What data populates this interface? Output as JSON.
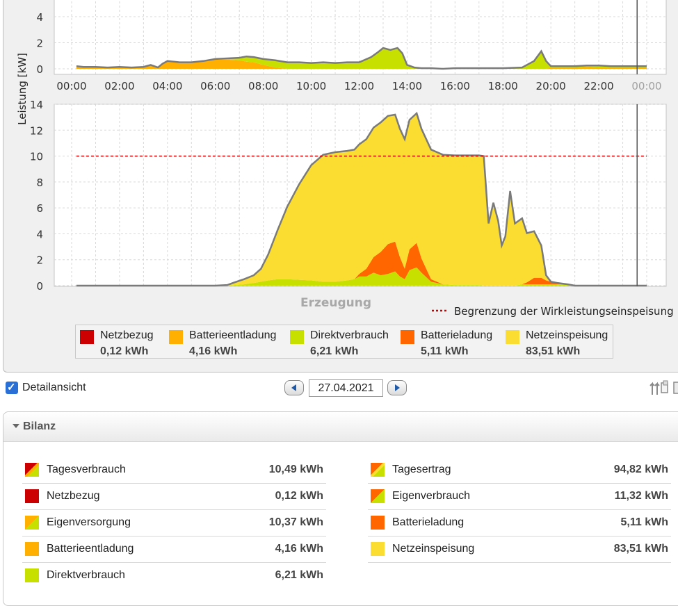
{
  "colors": {
    "netzbezug": "#cc0000",
    "batterieentladung": "#ffb000",
    "direktverbrauch": "#c8e000",
    "batterieladung": "#ff6600",
    "netzeinspeisung": "#fadd30",
    "limit_line": "#cc0000",
    "outline": "#7a7a7a"
  },
  "chart_data": [
    {
      "type": "area",
      "ylabel": "Leistung [kW]",
      "ylim": [
        0,
        4
      ],
      "yticks": [
        "0",
        "2",
        "4"
      ],
      "xticks": [
        "00:00",
        "02:00",
        "04:00",
        "06:00",
        "08:00",
        "10:00",
        "12:00",
        "14:00",
        "16:00",
        "18:00",
        "20:00",
        "22:00",
        "00:00"
      ],
      "xlim": [
        0,
        24
      ],
      "cursor_x": 23.6,
      "x": [
        0.2,
        0.5,
        1,
        1.5,
        2,
        2.5,
        3,
        3.3,
        3.6,
        3.8,
        4,
        4.5,
        5,
        5.5,
        6,
        6.5,
        7,
        7.3,
        7.6,
        8,
        8.5,
        9,
        9.5,
        10,
        10.5,
        11,
        11.5,
        12,
        12.5,
        12.8,
        13,
        13.3,
        13.6,
        13.8,
        14,
        14.3,
        14.6,
        15,
        15.5,
        16,
        17,
        18,
        18.8,
        19.3,
        19.6,
        19.8,
        20,
        21,
        21.5,
        22,
        22.5,
        23,
        23.6,
        24
      ],
      "series": [
        {
          "name": "Batterieentladung",
          "values": [
            0.2,
            0.15,
            0.15,
            0.1,
            0.15,
            0.1,
            0.15,
            0.3,
            0.1,
            0.4,
            0.6,
            0.5,
            0.5,
            0.55,
            0.7,
            0.7,
            0.65,
            0.55,
            0.5,
            0.3,
            0.1,
            0.0,
            0,
            0,
            0,
            0,
            0,
            0,
            0,
            0,
            0,
            0,
            0,
            0,
            0,
            0,
            0,
            0,
            0,
            0,
            0,
            0,
            0,
            0,
            0,
            0,
            0.1,
            0.1,
            0.15,
            0.1,
            0.1,
            0.1,
            0.1,
            0.1
          ]
        },
        {
          "name": "Direktverbrauch",
          "values": [
            0,
            0,
            0,
            0,
            0,
            0,
            0,
            0,
            0,
            0,
            0,
            0,
            0,
            0.05,
            0.05,
            0.1,
            0.2,
            0.4,
            0.4,
            0.45,
            0.55,
            0.5,
            0.5,
            0.45,
            0.5,
            0.45,
            0.5,
            0.5,
            0.9,
            1.3,
            1.6,
            1.45,
            1.6,
            1.2,
            0.3,
            0.1,
            0.05,
            0.05,
            0,
            0.05,
            0.05,
            0.05,
            0.1,
            0.6,
            1.35,
            0.6,
            0.1,
            0.1,
            0.1,
            0.15,
            0.1,
            0.1,
            0.1,
            0.1
          ]
        }
      ]
    },
    {
      "type": "area",
      "title": "Erzeugung",
      "ylim": [
        0,
        14
      ],
      "yticks": [
        "0",
        "2",
        "4",
        "6",
        "8",
        "10",
        "12",
        "14"
      ],
      "xlim": [
        0,
        24
      ],
      "cursor_x": 23.6,
      "limit": {
        "name": "Begrenzung der Wirkleistungseinspeisung",
        "value": 10
      },
      "x": [
        0.2,
        1,
        2,
        3,
        4,
        5,
        6,
        6.5,
        6.8,
        7.2,
        7.6,
        7.9,
        8.2,
        8.6,
        9,
        9.5,
        10,
        10.5,
        11,
        11.5,
        11.8,
        12,
        12.3,
        12.6,
        12.9,
        13.2,
        13.5,
        13.7,
        13.9,
        14.1,
        14.4,
        14.6,
        15,
        15.5,
        16,
        16.4,
        16.6,
        16.8,
        17.0,
        17.2,
        17.4,
        17.6,
        17.8,
        17.95,
        18.1,
        18.3,
        18.5,
        18.8,
        19.0,
        19.3,
        19.6,
        19.8,
        20.0,
        20.3,
        20.7,
        21,
        22,
        23,
        24
      ],
      "series": [
        {
          "name": "Direktverbrauch",
          "values": [
            0,
            0,
            0,
            0,
            0,
            0,
            0,
            0,
            0.05,
            0.1,
            0.2,
            0.3,
            0.4,
            0.5,
            0.5,
            0.45,
            0.4,
            0.3,
            0.3,
            0.4,
            0.5,
            0.7,
            0.7,
            1.0,
            0.8,
            0.9,
            1.1,
            0.7,
            0.5,
            1.2,
            1.4,
            1.0,
            0.3,
            0.1,
            0.05,
            0.05,
            0.05,
            0.05,
            0.05,
            0,
            0,
            0,
            0,
            0,
            0,
            0,
            0,
            0.1,
            0.1,
            0.1,
            0.1,
            0.1,
            0.1,
            0.1,
            0.1,
            0,
            0,
            0,
            0
          ]
        },
        {
          "name": "Batterieladung",
          "values": [
            0,
            0,
            0,
            0,
            0,
            0,
            0,
            0,
            0,
            0,
            0,
            0,
            0,
            0,
            0,
            0,
            0,
            0,
            0,
            0,
            0,
            0.2,
            0.6,
            1.2,
            1.8,
            2.3,
            2.3,
            1.5,
            0.8,
            1.6,
            1.9,
            1.1,
            0.2,
            0,
            0,
            0,
            0,
            0,
            0,
            0,
            0,
            0,
            0,
            0,
            0,
            0,
            0,
            0,
            0.15,
            0.5,
            0.5,
            0.3,
            0.2,
            0.1,
            0,
            0,
            0,
            0,
            0
          ]
        },
        {
          "name": "Netzeinspeisung",
          "values": [
            0,
            0,
            0,
            0,
            0,
            0,
            0,
            0.05,
            0.2,
            0.4,
            0.6,
            1.0,
            2.0,
            3.8,
            5.6,
            7.4,
            8.9,
            9.8,
            10.0,
            10.0,
            10.0,
            10.0,
            10.0,
            10.0,
            10.0,
            9.9,
            9.8,
            9.9,
            10.0,
            10.0,
            10.0,
            10.0,
            10.0,
            10.0,
            10.0,
            10.0,
            10.0,
            10.0,
            10.0,
            10.0,
            4.8,
            6.4,
            5.0,
            3.1,
            3.8,
            7.3,
            4.8,
            5.1,
            3.8,
            3.6,
            2.5,
            0.4,
            0.0,
            0,
            0,
            0,
            0,
            0,
            0
          ]
        }
      ]
    }
  ],
  "legend": [
    {
      "name": "Netzbezug",
      "value": "0,12 kWh",
      "color": "#cc0000"
    },
    {
      "name": "Batterieentladung",
      "value": "4,16 kWh",
      "color": "#ffb000"
    },
    {
      "name": "Direktverbrauch",
      "value": "6,21 kWh",
      "color": "#c8e000"
    },
    {
      "name": "Batterieladung",
      "value": "5,11 kWh",
      "color": "#ff6600"
    },
    {
      "name": "Netzeinspeisung",
      "value": "83,51 kWh",
      "color": "#fadd30"
    }
  ],
  "toolbar": {
    "detail_label": "Detailansicht",
    "detail_checked": true,
    "date": "27.04.2021",
    "export_icon": "export-icon"
  },
  "bilanz": {
    "title": "Bilanz",
    "left": [
      {
        "label": "Tagesverbrauch",
        "value": "10,49 kWh",
        "swatch": [
          "#cc0000",
          "#ffb000",
          "#c8e000"
        ]
      },
      {
        "label": "Netzbezug",
        "value": "0,12 kWh",
        "swatch": [
          "#cc0000"
        ]
      },
      {
        "label": "Eigenversorgung",
        "value": "10,37 kWh",
        "swatch": [
          "#ffb000",
          "#c8e000"
        ]
      },
      {
        "label": "Batterieentladung",
        "value": "4,16 kWh",
        "swatch": [
          "#ffb000"
        ]
      },
      {
        "label": "Direktverbrauch",
        "value": "6,21 kWh",
        "swatch": [
          "#c8e000"
        ]
      }
    ],
    "right": [
      {
        "label": "Tagesertrag",
        "value": "94,82 kWh",
        "swatch": [
          "#ff6600",
          "#fadd30",
          "#c8e000"
        ]
      },
      {
        "label": "Eigenverbrauch",
        "value": "11,32 kWh",
        "swatch": [
          "#ff6600",
          "#c8e000"
        ]
      },
      {
        "label": "Batterieladung",
        "value": "5,11 kWh",
        "swatch": [
          "#ff6600"
        ]
      },
      {
        "label": "Netzeinspeisung",
        "value": "83,51 kWh",
        "swatch": [
          "#fadd30"
        ]
      }
    ]
  }
}
